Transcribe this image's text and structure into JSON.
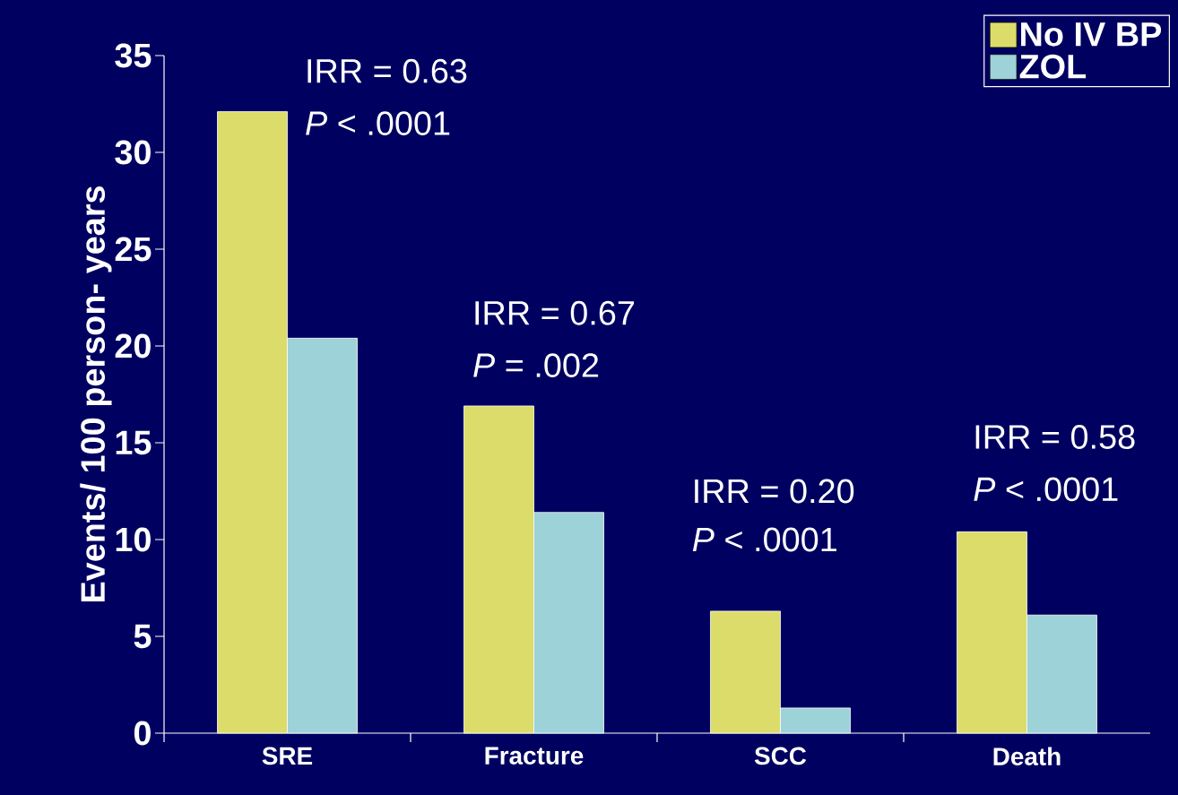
{
  "chart_data": {
    "type": "bar",
    "ylabel": "Events/ 100 person- years",
    "categories": [
      "SRE",
      "Fracture",
      "SCC",
      "Death"
    ],
    "series": [
      {
        "name": "No IV BP",
        "color": "#dcdc6a",
        "values": [
          32.1,
          16.9,
          6.3,
          10.4
        ]
      },
      {
        "name": "ZOL",
        "color": "#9dd2d8",
        "values": [
          20.4,
          11.4,
          1.3,
          6.1
        ]
      }
    ],
    "ylim": [
      0,
      35
    ],
    "yticks": [
      0,
      5,
      10,
      15,
      20,
      25,
      30,
      35
    ],
    "legend": "top right",
    "annotations": [
      "IRR = 0.63",
      "*P* < .0001",
      "IRR = 0.67",
      "*P* = .002",
      "IRR = 0.20",
      "*P* < .0001",
      "IRR = 0.58",
      "*P* < .0001"
    ]
  }
}
